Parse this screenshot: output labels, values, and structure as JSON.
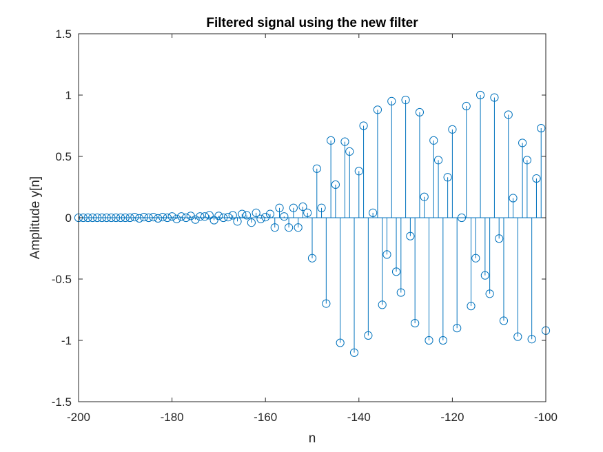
{
  "chart_data": {
    "type": "scatter",
    "style": "stem",
    "title": "Filtered signal using the new filter",
    "xlabel": "n",
    "ylabel": "Amplitude y[n]",
    "xlim": [
      -200,
      -100
    ],
    "ylim": [
      -1.5,
      1.5
    ],
    "xticks": [
      -200,
      -180,
      -160,
      -140,
      -120,
      -100
    ],
    "yticks": [
      -1.5,
      -1,
      -0.5,
      0,
      0.5,
      1,
      1.5
    ],
    "xtick_labels": [
      "-200",
      "-180",
      "-160",
      "-140",
      "-120",
      "-100"
    ],
    "ytick_labels": [
      "-1.5",
      "-1",
      "-0.5",
      "0",
      "0.5",
      "1",
      "1.5"
    ],
    "grid": false,
    "color": "#0072BD",
    "x": [
      -200,
      -199,
      -198,
      -197,
      -196,
      -195,
      -194,
      -193,
      -192,
      -191,
      -190,
      -189,
      -188,
      -187,
      -186,
      -185,
      -184,
      -183,
      -182,
      -181,
      -180,
      -179,
      -178,
      -177,
      -176,
      -175,
      -174,
      -173,
      -172,
      -171,
      -170,
      -169,
      -168,
      -167,
      -166,
      -165,
      -164,
      -163,
      -162,
      -161,
      -160,
      -159,
      -158,
      -157,
      -156,
      -155,
      -154,
      -153,
      -152,
      -151,
      -150,
      -149,
      -148,
      -147,
      -146,
      -145,
      -144,
      -143,
      -142,
      -141,
      -140,
      -139,
      -138,
      -137,
      -136,
      -135,
      -134,
      -133,
      -132,
      -131,
      -130,
      -129,
      -128,
      -127,
      -126,
      -125,
      -124,
      -123,
      -122,
      -121,
      -120,
      -119,
      -118,
      -117,
      -116,
      -115,
      -114,
      -113,
      -112,
      -111,
      -110,
      -109,
      -108,
      -107,
      -106,
      -105,
      -104,
      -103,
      -102,
      -101,
      -100
    ],
    "y": [
      0,
      0,
      0,
      0,
      0,
      0,
      0,
      0,
      0,
      0,
      0,
      0,
      0.005,
      -0.005,
      0.005,
      0,
      0.005,
      -0.005,
      0.005,
      0,
      0.01,
      -0.01,
      0.01,
      0,
      0.015,
      -0.015,
      0.01,
      0.01,
      0.02,
      -0.02,
      0.015,
      0,
      0.005,
      0.02,
      -0.03,
      0.03,
      0.02,
      -0.04,
      0.04,
      -0.01,
      0.005,
      0.03,
      -0.08,
      0.08,
      0.01,
      -0.08,
      0.08,
      -0.08,
      0.09,
      0.04,
      -0.33,
      0.4,
      0.08,
      -0.7,
      0.63,
      0.27,
      -1.02,
      0.62,
      0.54,
      -1.1,
      0.38,
      0.75,
      -0.96,
      0.04,
      0.88,
      -0.71,
      -0.3,
      0.95,
      -0.44,
      -0.61,
      0.96,
      -0.15,
      -0.86,
      0.86,
      0.17,
      -1.0,
      0.63,
      0.47,
      -1.0,
      0.33,
      0.72,
      -0.9,
      0.0,
      0.91,
      -0.72,
      -0.33,
      1.0,
      -0.47,
      -0.62,
      0.98,
      -0.17,
      -0.84,
      0.84,
      0.16,
      -0.97,
      0.61,
      0.47,
      -0.99,
      0.32,
      0.73,
      -0.92
    ]
  }
}
